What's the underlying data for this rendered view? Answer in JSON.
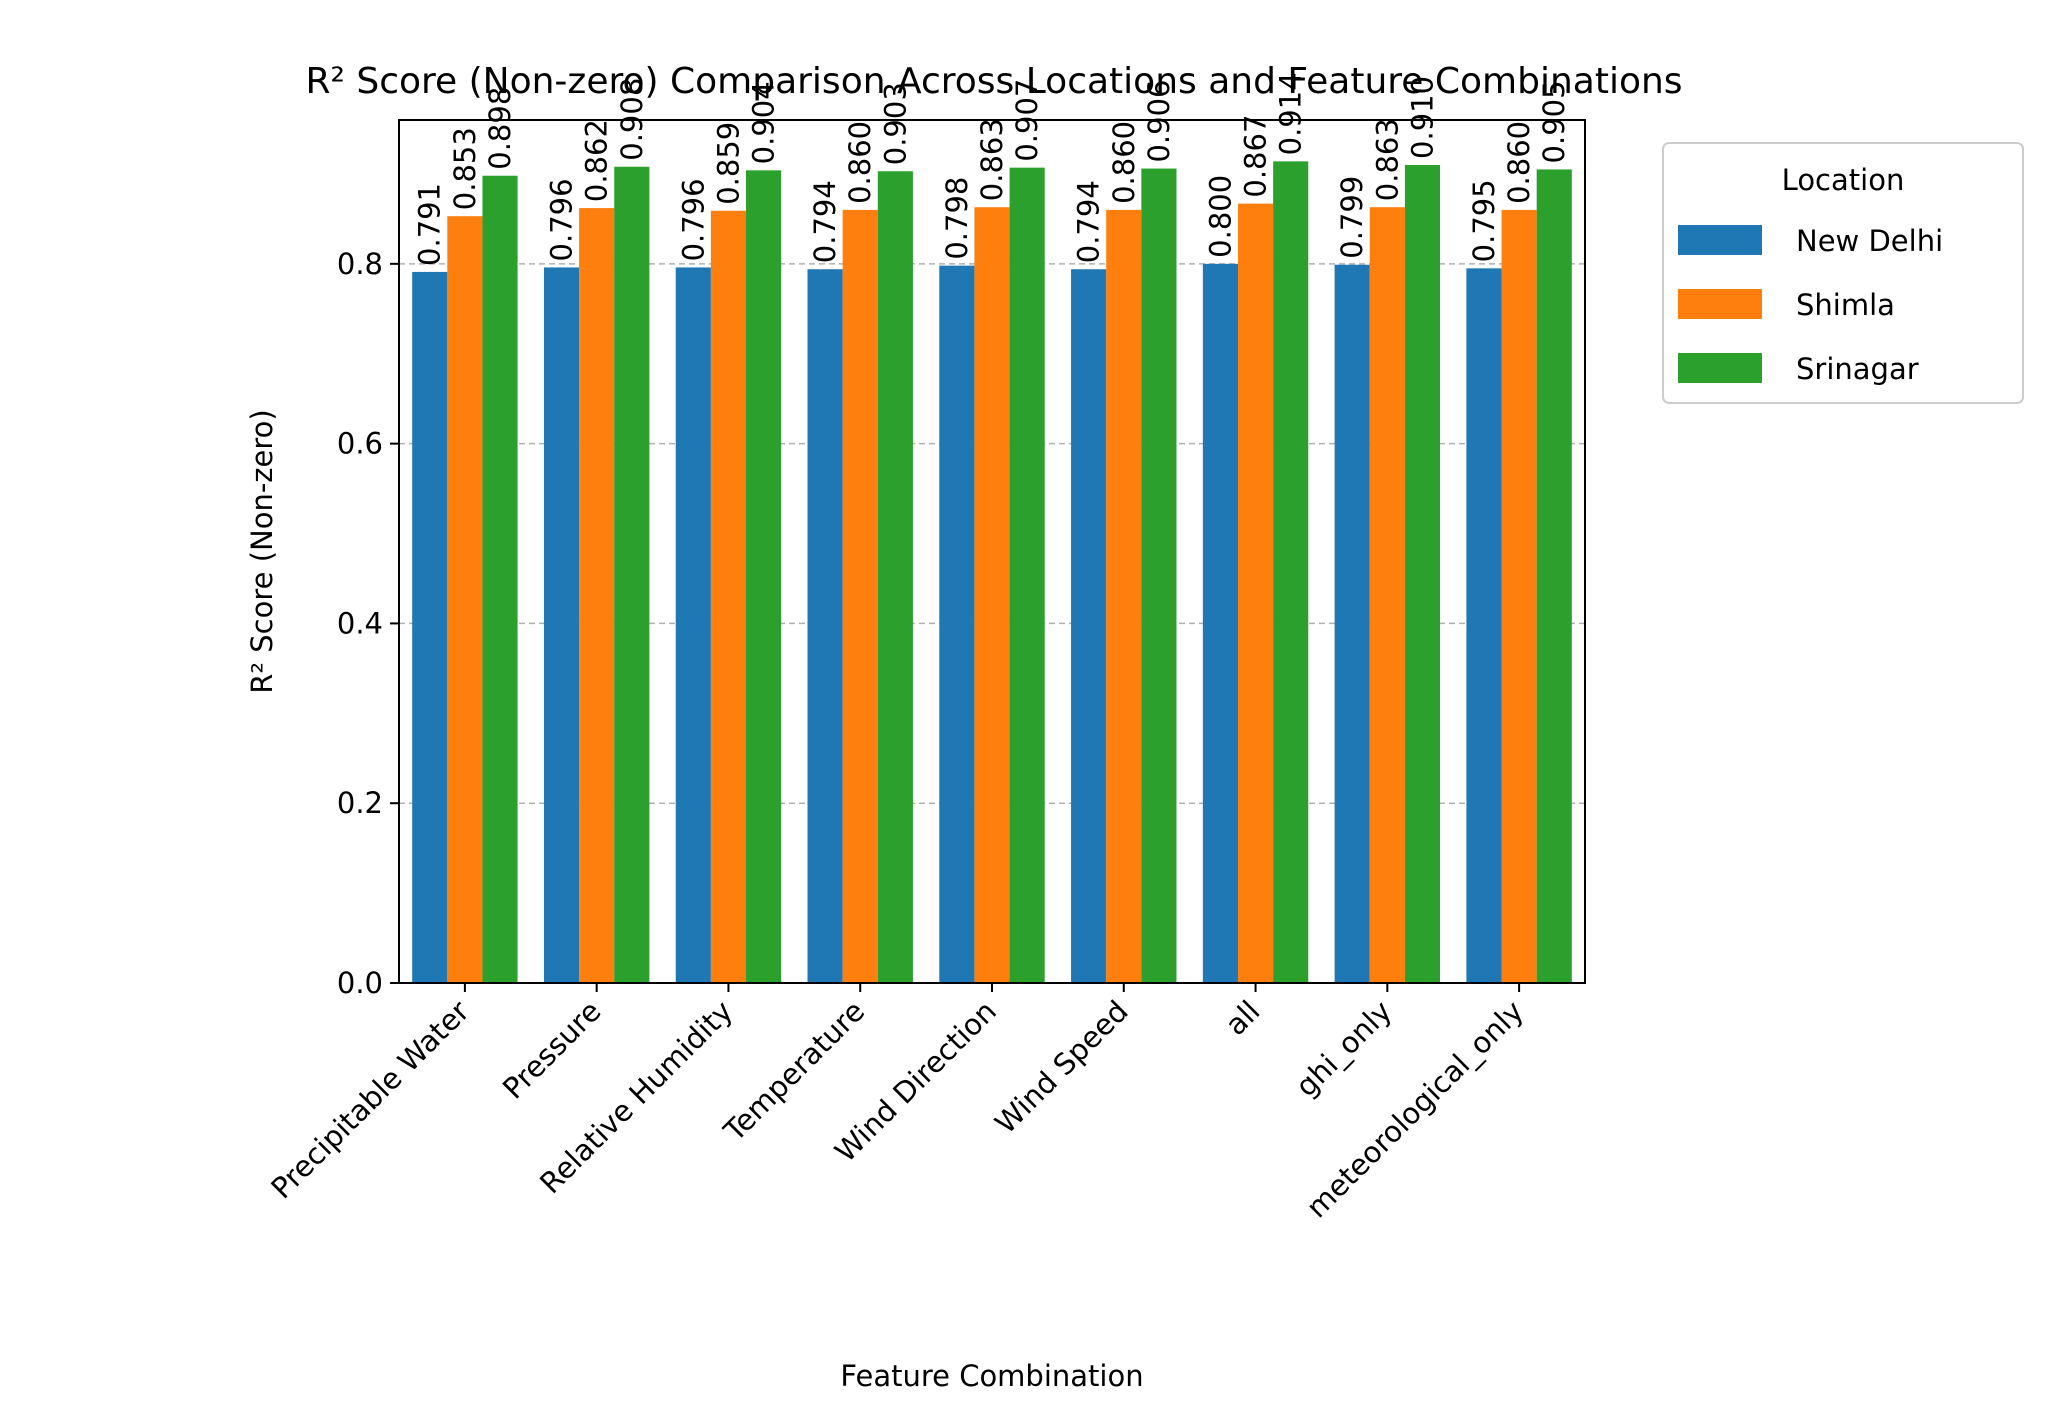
{
  "chart_data": {
    "type": "bar",
    "title": "R² Score (Non-zero) Comparison Across Locations and Feature Combinations",
    "xlabel": "Feature Combination",
    "ylabel": "R² Score (Non-zero)",
    "ylim": [
      0,
      0.96
    ],
    "yticks": [
      "0.0",
      "0.2",
      "0.4",
      "0.6",
      "0.8"
    ],
    "grid": "y-dashed",
    "legend": {
      "title": "Location",
      "placement": "outside-top-right"
    },
    "categories": [
      "Precipitable Water",
      "Pressure",
      "Relative Humidity",
      "Temperature",
      "Wind Direction",
      "Wind Speed",
      "all",
      "ghi_only",
      "meteorological_only"
    ],
    "series": [
      {
        "name": "New Delhi",
        "color": "#1f77b4",
        "values": [
          0.791,
          0.796,
          0.796,
          0.794,
          0.798,
          0.794,
          0.8,
          0.799,
          0.795
        ],
        "labels": [
          "0.791",
          "0.796",
          "0.796",
          "0.794",
          "0.798",
          "0.794",
          "0.800",
          "0.799",
          "0.795"
        ]
      },
      {
        "name": "Shimla",
        "color": "#ff7f0e",
        "values": [
          0.853,
          0.862,
          0.859,
          0.86,
          0.863,
          0.86,
          0.867,
          0.863,
          0.86
        ],
        "labels": [
          "0.853",
          "0.862",
          "0.859",
          "0.860",
          "0.863",
          "0.860",
          "0.867",
          "0.863",
          "0.860"
        ]
      },
      {
        "name": "Srinagar",
        "color": "#2ca02c",
        "values": [
          0.898,
          0.908,
          0.904,
          0.903,
          0.907,
          0.906,
          0.914,
          0.91,
          0.905
        ],
        "labels": [
          "0.898",
          "0.908",
          "0.904",
          "0.903",
          "0.907",
          "0.906",
          "0.914",
          "0.910",
          "0.905"
        ]
      }
    ]
  }
}
